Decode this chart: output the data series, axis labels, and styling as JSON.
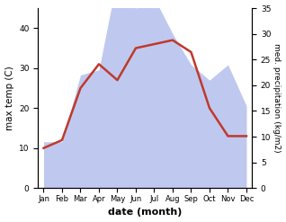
{
  "months": [
    "Jan",
    "Feb",
    "Mar",
    "Apr",
    "May",
    "Jun",
    "Jul",
    "Aug",
    "Sep",
    "Oct",
    "Nov",
    "Dec"
  ],
  "temperature": [
    10,
    12,
    25,
    31,
    27,
    35,
    36,
    37,
    34,
    20,
    13,
    13
  ],
  "precipitation": [
    9,
    9,
    22,
    23,
    41,
    35,
    37,
    30,
    24,
    21,
    24,
    16
  ],
  "temp_color": "#c0392b",
  "precip_color_fill": "#b8c4ee",
  "title": "",
  "xlabel": "date (month)",
  "ylabel_left": "max temp (C)",
  "ylabel_right": "med. precipitation (kg/m2)",
  "ylim_left": [
    0,
    45
  ],
  "ylim_right": [
    0,
    35
  ],
  "yticks_left": [
    0,
    10,
    20,
    30,
    40
  ],
  "yticks_right": [
    0,
    5,
    10,
    15,
    20,
    25,
    30,
    35
  ],
  "bg_color": "#ffffff",
  "line_width": 1.8
}
